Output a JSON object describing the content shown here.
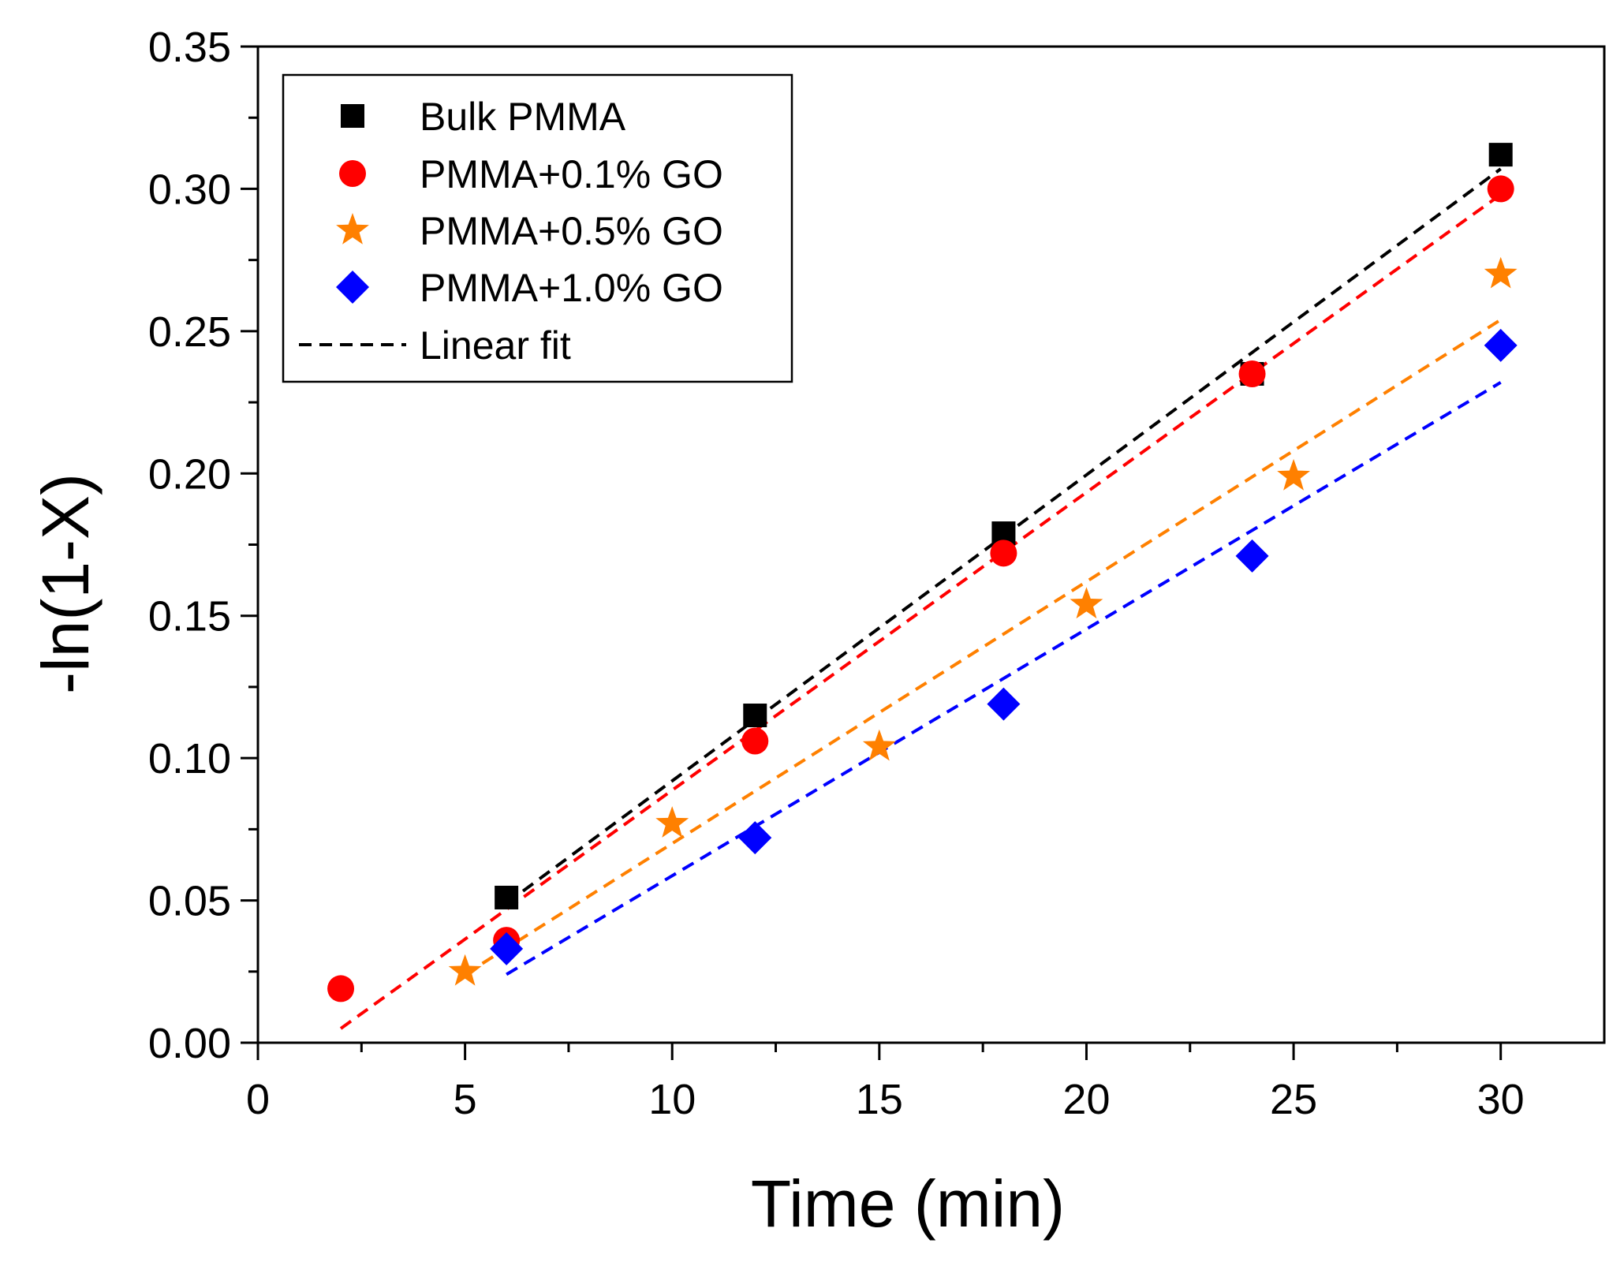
{
  "chart_data": {
    "type": "scatter",
    "xlabel": "Time (min)",
    "ylabel": "-ln(1-X)",
    "xlim": [
      0,
      32.5
    ],
    "ylim": [
      0,
      0.35
    ],
    "xticks": [
      "0",
      "5",
      "10",
      "15",
      "20",
      "25",
      "30"
    ],
    "xtick_values": [
      0,
      5,
      10,
      15,
      20,
      25,
      30
    ],
    "yticks": [
      "0.00",
      "0.05",
      "0.10",
      "0.15",
      "0.20",
      "0.25",
      "0.30",
      "0.35"
    ],
    "ytick_values": [
      0,
      0.05,
      0.1,
      0.15,
      0.2,
      0.25,
      0.3,
      0.35
    ],
    "legend_position": "top-left",
    "series": [
      {
        "name": "Bulk PMMA",
        "marker": "square",
        "color": "#000000",
        "x": [
          6,
          12,
          18,
          24,
          30
        ],
        "y": [
          0.051,
          0.115,
          0.179,
          0.235,
          0.312
        ],
        "fit": {
          "x": [
            6,
            30
          ],
          "y": [
            0.049,
            0.307
          ]
        }
      },
      {
        "name": "PMMA+0.1% GO",
        "marker": "circle",
        "color": "#ff0000",
        "x": [
          2,
          6,
          12,
          18,
          24,
          30
        ],
        "y": [
          0.019,
          0.036,
          0.106,
          0.172,
          0.235,
          0.3
        ],
        "fit": {
          "x": [
            2,
            30
          ],
          "y": [
            0.005,
            0.298
          ]
        }
      },
      {
        "name": "PMMA+0.5% GO",
        "marker": "star",
        "color": "#ff8000",
        "x": [
          5,
          10,
          15,
          20,
          25,
          30
        ],
        "y": [
          0.025,
          0.077,
          0.104,
          0.154,
          0.199,
          0.27
        ],
        "fit": {
          "x": [
            5,
            30
          ],
          "y": [
            0.024,
            0.254
          ]
        }
      },
      {
        "name": "PMMA+1.0% GO",
        "marker": "diamond",
        "color": "#0000ff",
        "x": [
          6,
          12,
          18,
          24,
          30
        ],
        "y": [
          0.033,
          0.072,
          0.119,
          0.171,
          0.245
        ],
        "fit": {
          "x": [
            6,
            30
          ],
          "y": [
            0.024,
            0.232
          ]
        }
      }
    ],
    "fit_legend_label": "Linear fit"
  }
}
